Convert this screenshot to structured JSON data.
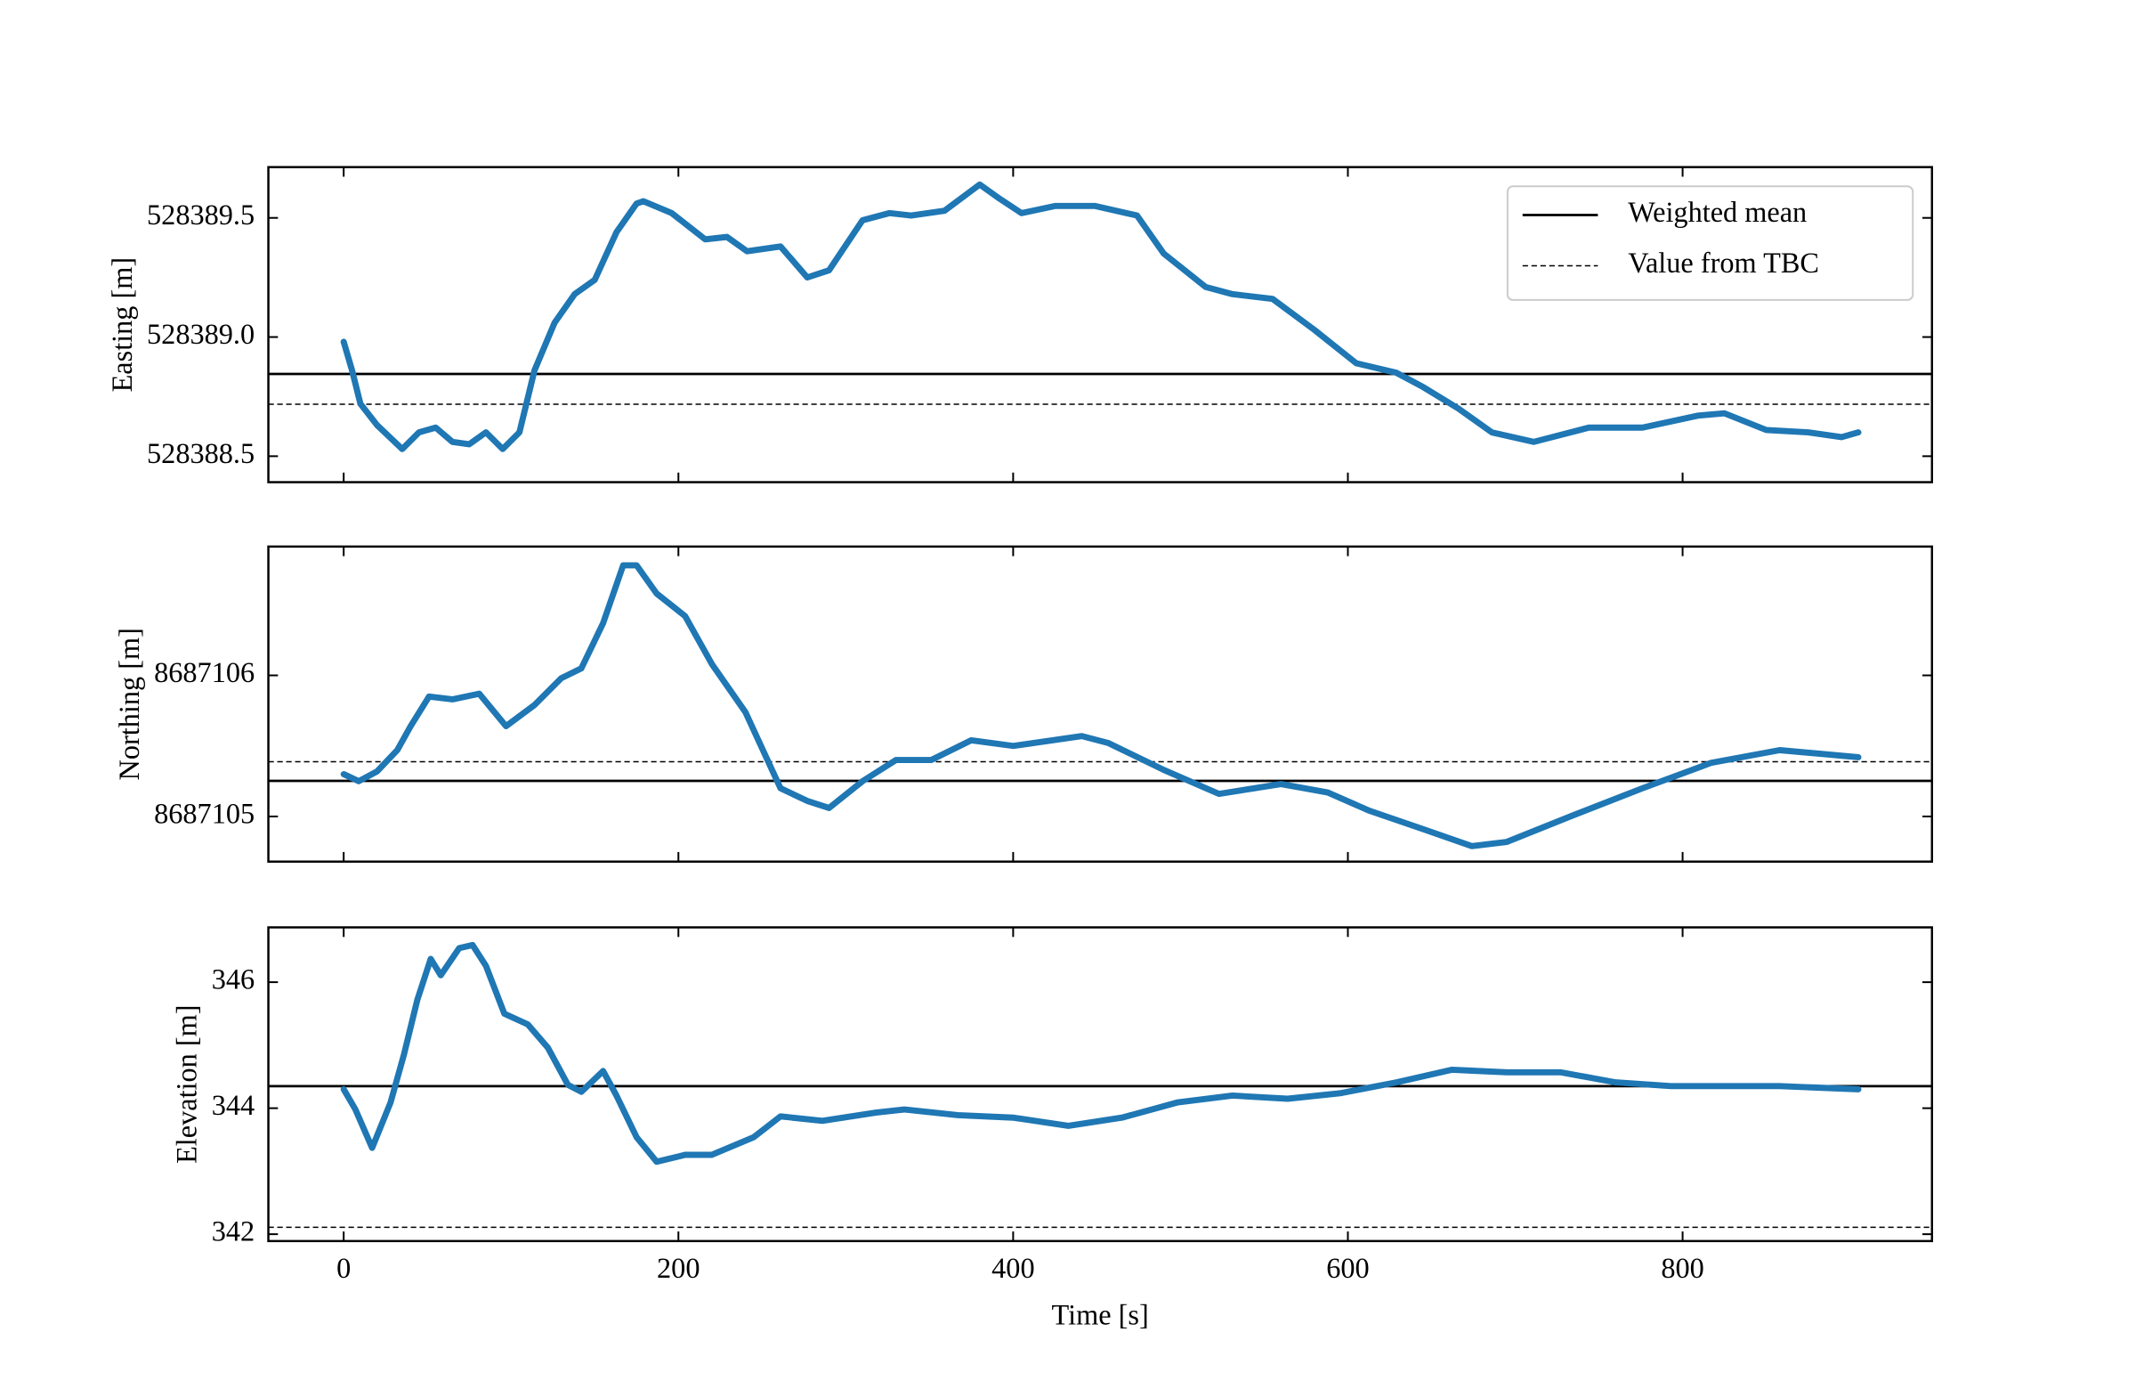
{
  "chart_data": [
    {
      "type": "scatter-line",
      "ylabel": "Easting [m]",
      "color": "#1f77b4",
      "xlim": [
        -45,
        949
      ],
      "xticks": [
        0,
        200,
        400,
        600,
        800
      ],
      "show_xticklabels": false,
      "ylim": [
        528388.391,
        528389.713
      ],
      "yticks": [
        528388.5,
        {
          "value": 528389,
          "label": "528389.0"
        },
        528389.5
      ],
      "x": [
        0,
        5,
        10,
        20,
        35,
        45,
        55,
        65,
        75,
        85,
        95,
        105,
        114,
        126,
        138,
        150,
        163,
        175,
        179,
        196,
        216,
        229,
        241,
        261,
        277,
        290,
        310,
        326,
        339,
        359,
        380,
        392,
        405,
        425,
        449,
        474,
        490,
        515,
        531,
        555,
        580,
        605,
        629,
        645,
        666,
        686,
        711,
        744,
        776,
        809,
        825,
        850,
        875,
        895,
        905
      ],
      "values": [
        528388.98,
        528388.86,
        528388.72,
        528388.63,
        528388.53,
        528388.6,
        528388.62,
        528388.56,
        528388.55,
        528388.6,
        528388.53,
        528388.6,
        528388.86,
        528389.06,
        528389.18,
        528389.24,
        528389.44,
        528389.56,
        528389.57,
        528389.52,
        528389.41,
        528389.42,
        528389.36,
        528389.38,
        528389.25,
        528389.28,
        528389.49,
        528389.52,
        528389.51,
        528389.53,
        528389.64,
        528389.58,
        528389.52,
        528389.55,
        528389.55,
        528389.51,
        528389.35,
        528389.21,
        528389.18,
        528389.16,
        528389.03,
        528388.89,
        528388.85,
        528388.79,
        528388.7,
        528388.6,
        528388.56,
        528388.62,
        528388.62,
        528388.67,
        528388.68,
        528388.61,
        528388.6,
        528388.58,
        528388.6
      ],
      "hlines": [
        {
          "value": 528388.845,
          "style": "solid"
        },
        {
          "value": 528388.718,
          "style": "dashed"
        }
      ],
      "legend": [
        {
          "name": "Weighted mean",
          "style": "solid"
        },
        {
          "name": "Value from TBC",
          "style": "dashed"
        }
      ]
    },
    {
      "type": "scatter-line",
      "ylabel": "Northing [m]",
      "color": "#1f77b4",
      "xlim": [
        -45,
        949
      ],
      "xticks": [
        0,
        200,
        400,
        600,
        800
      ],
      "show_xticklabels": false,
      "ylim": [
        8687104.68,
        8687106.913
      ],
      "yticks": [
        8687105,
        8687106
      ],
      "x": [
        0,
        9,
        20,
        32,
        40,
        51,
        65,
        81,
        97,
        114,
        130,
        142,
        155,
        167,
        175,
        187,
        204,
        220,
        240,
        261,
        277,
        290,
        310,
        330,
        351,
        375,
        400,
        441,
        457,
        490,
        523,
        560,
        588,
        613,
        645,
        674,
        695,
        735,
        776,
        817,
        858,
        905
      ],
      "values": [
        8687105.3,
        8687105.25,
        8687105.32,
        8687105.47,
        8687105.64,
        8687105.85,
        8687105.83,
        8687105.87,
        8687105.64,
        8687105.79,
        8687105.98,
        8687106.05,
        8687106.37,
        8687106.78,
        8687106.78,
        8687106.58,
        8687106.42,
        8687106.08,
        8687105.74,
        8687105.2,
        8687105.11,
        8687105.06,
        8687105.25,
        8687105.4,
        8687105.4,
        8687105.54,
        8687105.5,
        8687105.57,
        8687105.52,
        8687105.33,
        8687105.16,
        8687105.23,
        8687105.17,
        8687105.04,
        8687104.91,
        8687104.79,
        8687104.82,
        8687105.01,
        8687105.2,
        8687105.38,
        8687105.47,
        8687105.42
      ],
      "hlines": [
        {
          "value": 8687105.252,
          "style": "solid"
        },
        {
          "value": 8687105.388,
          "style": "dashed"
        }
      ]
    },
    {
      "type": "scatter-line",
      "ylabel": "Elevation [m]",
      "xlabel": "Time [s]",
      "color": "#1f77b4",
      "xlim": [
        -45,
        949
      ],
      "xticks": [
        0,
        200,
        400,
        600,
        800
      ],
      "show_xticklabels": true,
      "ylim": [
        341.891,
        346.87
      ],
      "yticks": [
        342,
        344,
        346
      ],
      "x": [
        0,
        7,
        17,
        28,
        36,
        44,
        52,
        58,
        69,
        77,
        85,
        96,
        110,
        122,
        134,
        142,
        155,
        163,
        175,
        187,
        204,
        220,
        245,
        261,
        286,
        318,
        335,
        367,
        400,
        433,
        465,
        498,
        531,
        564,
        596,
        629,
        662,
        695,
        727,
        760,
        793,
        858,
        905
      ],
      "values": [
        344.3,
        343.98,
        343.37,
        344.09,
        344.85,
        345.72,
        346.37,
        346.11,
        346.54,
        346.59,
        346.26,
        345.5,
        345.33,
        344.96,
        344.37,
        344.26,
        344.59,
        344.2,
        343.54,
        343.15,
        343.26,
        343.26,
        343.54,
        343.87,
        343.8,
        343.93,
        343.98,
        343.89,
        343.85,
        343.72,
        343.85,
        344.09,
        344.2,
        344.15,
        344.24,
        344.41,
        344.61,
        344.57,
        344.57,
        344.41,
        344.35,
        344.35,
        344.3
      ],
      "hlines": [
        {
          "value": 344.35,
          "style": "solid"
        },
        {
          "value": 342.11,
          "style": "dashed"
        }
      ]
    }
  ]
}
